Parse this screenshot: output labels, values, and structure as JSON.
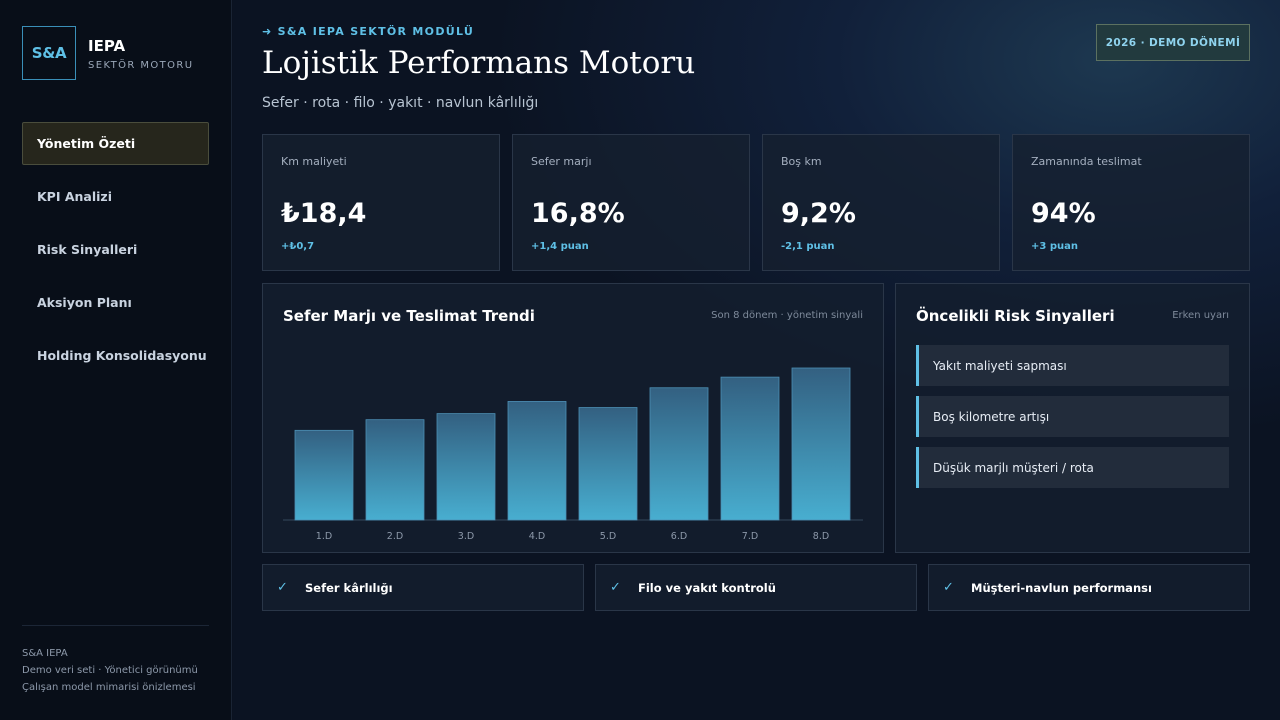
{
  "sidebar": {
    "logo_text": "S&A",
    "brand_title": "IEPA",
    "brand_subtitle": "SEKTÖR MOTORU",
    "nav_items": [
      {
        "label": "Yönetim Özeti",
        "active": true
      },
      {
        "label": "KPI Analizi",
        "active": false
      },
      {
        "label": "Risk Sinyalleri",
        "active": false
      },
      {
        "label": "Aksiyon Planı",
        "active": false
      },
      {
        "label": "Holding Konsolidasyonu",
        "active": false
      }
    ],
    "footer": {
      "line1": "S&A IEPA",
      "line2": "Demo veri seti · Yönetici görünümü",
      "line3": "Çalışan model mimarisi önizlemesi"
    }
  },
  "header": {
    "eyebrow": "➜ S&A IEPA SEKTÖR MODÜLÜ",
    "title": "Lojistik Performans Motoru",
    "subtitle": "Sefer · rota · filo · yakıt · navlun kârlılığı",
    "period_badge": "2026 · DEMO DÖNEMİ"
  },
  "kpis": [
    {
      "label": "Km maliyeti",
      "value": "₺18,4",
      "delta": "+₺0,7"
    },
    {
      "label": "Sefer marjı",
      "value": "16,8%",
      "delta": "+1,4 puan"
    },
    {
      "label": "Boş km",
      "value": "9,2%",
      "delta": "-2,1 puan"
    },
    {
      "label": "Zamanında teslimat",
      "value": "94%",
      "delta": "+3 puan"
    }
  ],
  "trend_panel": {
    "title": "Sefer Marjı ve Teslimat Trendi",
    "meta": "Son 8 dönem · yönetim sinyali"
  },
  "chart_data": {
    "type": "bar",
    "categories": [
      "1.D",
      "2.D",
      "3.D",
      "4.D",
      "5.D",
      "6.D",
      "7.D",
      "8.D"
    ],
    "values": [
      59,
      66,
      70,
      78,
      74,
      87,
      94,
      100
    ],
    "ylim": [
      0,
      100
    ],
    "grid": false,
    "bar_color_top": "#336081",
    "bar_color_bottom": "#48aed0"
  },
  "risk_panel": {
    "title": "Öncelikli Risk Sinyalleri",
    "meta": "Erken uyarı",
    "items": [
      "Yakıt maliyeti sapması",
      "Boş kilometre artışı",
      "Düşük marjlı müşteri / rota"
    ]
  },
  "features": [
    {
      "icon": "check-icon",
      "label": "Sefer kârlılığı"
    },
    {
      "icon": "check-icon",
      "label": "Filo ve yakıt kontrolü"
    },
    {
      "icon": "check-icon",
      "label": "Müşteri-navlun performansı"
    }
  ]
}
